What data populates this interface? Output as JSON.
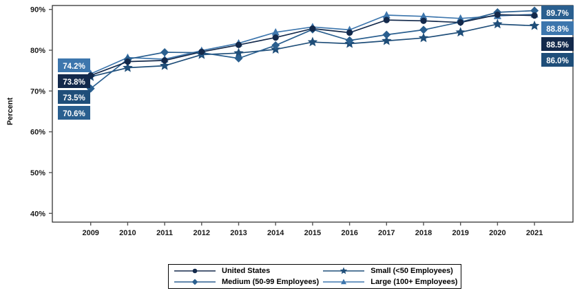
{
  "chart_data": {
    "type": "line",
    "title": "",
    "xlabel": "",
    "ylabel": "Percent",
    "ylim": [
      40,
      90
    ],
    "grid": false,
    "legend_position": "bottom",
    "yticks": [
      {
        "value": 90,
        "label": "90%"
      },
      {
        "value": 80,
        "label": "80%"
      },
      {
        "value": 70,
        "label": "70%"
      },
      {
        "value": 60,
        "label": "60%"
      },
      {
        "value": 50,
        "label": "50%"
      },
      {
        "value": 40,
        "label": "40%"
      }
    ],
    "x_labels": [
      "2009",
      "2010",
      "2011",
      "2012",
      "2013",
      "2014",
      "2015",
      "2016",
      "2017",
      "2018",
      "2019",
      "2020",
      "2021"
    ],
    "series": [
      {
        "name": "United States",
        "marker": "circle",
        "color": "#13294b",
        "values": [
          73.8,
          77.2,
          77.5,
          79.6,
          81.3,
          83.1,
          85.3,
          84.3,
          87.4,
          87.2,
          86.8,
          88.7,
          88.5
        ],
        "start_label": "73.8%",
        "end_label": "88.5%"
      },
      {
        "name": "Medium (50-99 Employees)",
        "marker": "diamond",
        "color": "#2a5f8f",
        "values": [
          70.6,
          77.8,
          79.5,
          79.4,
          78.0,
          81.2,
          85.1,
          82.4,
          83.8,
          85.0,
          86.9,
          89.3,
          89.7
        ],
        "start_label": "70.6%",
        "end_label": "89.7%"
      },
      {
        "name": "Small (<50 Employees)",
        "marker": "star",
        "color": "#1f4e79",
        "values": [
          73.5,
          75.7,
          76.2,
          78.9,
          79.3,
          80.2,
          82.0,
          81.6,
          82.3,
          83.0,
          84.4,
          86.4,
          86.0
        ],
        "start_label": "73.5%",
        "end_label": "86.0%"
      },
      {
        "name": "Large (100+ Employees)",
        "marker": "triangle",
        "color": "#3d76ad",
        "values": [
          74.2,
          78.2,
          77.8,
          79.9,
          81.7,
          84.4,
          85.7,
          85.0,
          88.6,
          88.3,
          87.8,
          88.4,
          88.8
        ],
        "start_label": "74.2%",
        "end_label": "88.8%"
      }
    ],
    "legend_order": [
      0,
      2,
      1,
      3
    ]
  }
}
